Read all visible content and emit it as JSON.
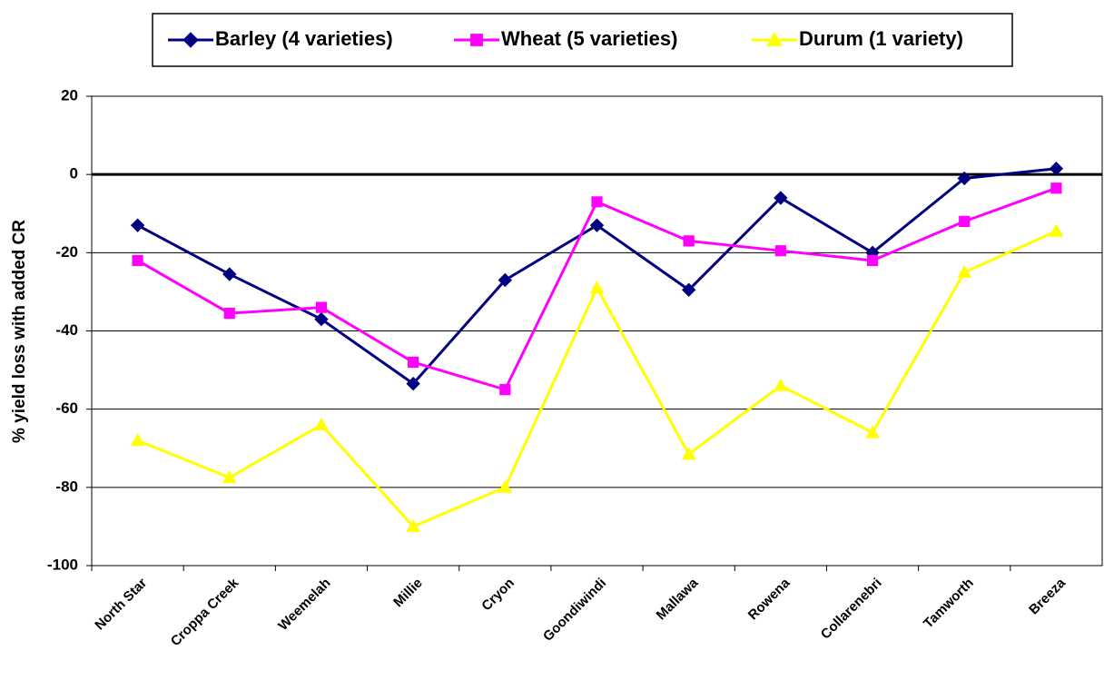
{
  "chart_data": {
    "type": "line",
    "y_label": "% yield loss with added CR",
    "categories": [
      "North Star",
      "Croppa Creek",
      "Weemelah",
      "Millie",
      "Cryon",
      "Goondiwindi",
      "Mallawa",
      "Rowena",
      "Collarenebri",
      "Tamworth",
      "Breeza"
    ],
    "series": [
      {
        "name": "Barley (4 varieties)",
        "color": "#000080",
        "marker": "diamond",
        "values": [
          -13,
          -25.5,
          -37,
          -53.5,
          -27,
          -13,
          -29.5,
          -6,
          -20,
          -1,
          1.5
        ]
      },
      {
        "name": "Wheat (5 varieties)",
        "color": "#ff00ff",
        "marker": "square",
        "values": [
          -22,
          -35.5,
          -34,
          -48,
          -55,
          -7,
          -17,
          -19.5,
          -22,
          -12,
          -3.5
        ]
      },
      {
        "name": "Durum (1 variety)",
        "color": "#ffff00",
        "marker": "triangle",
        "values": [
          -68,
          -77.5,
          -64,
          -90,
          -80,
          -29,
          -71.5,
          -54,
          -66,
          -25,
          -14.5
        ]
      }
    ],
    "ylim": [
      -100,
      20
    ],
    "yticks": [
      -100,
      -80,
      -60,
      -40,
      -20,
      0,
      20
    ],
    "grid": true,
    "legend": "top"
  }
}
